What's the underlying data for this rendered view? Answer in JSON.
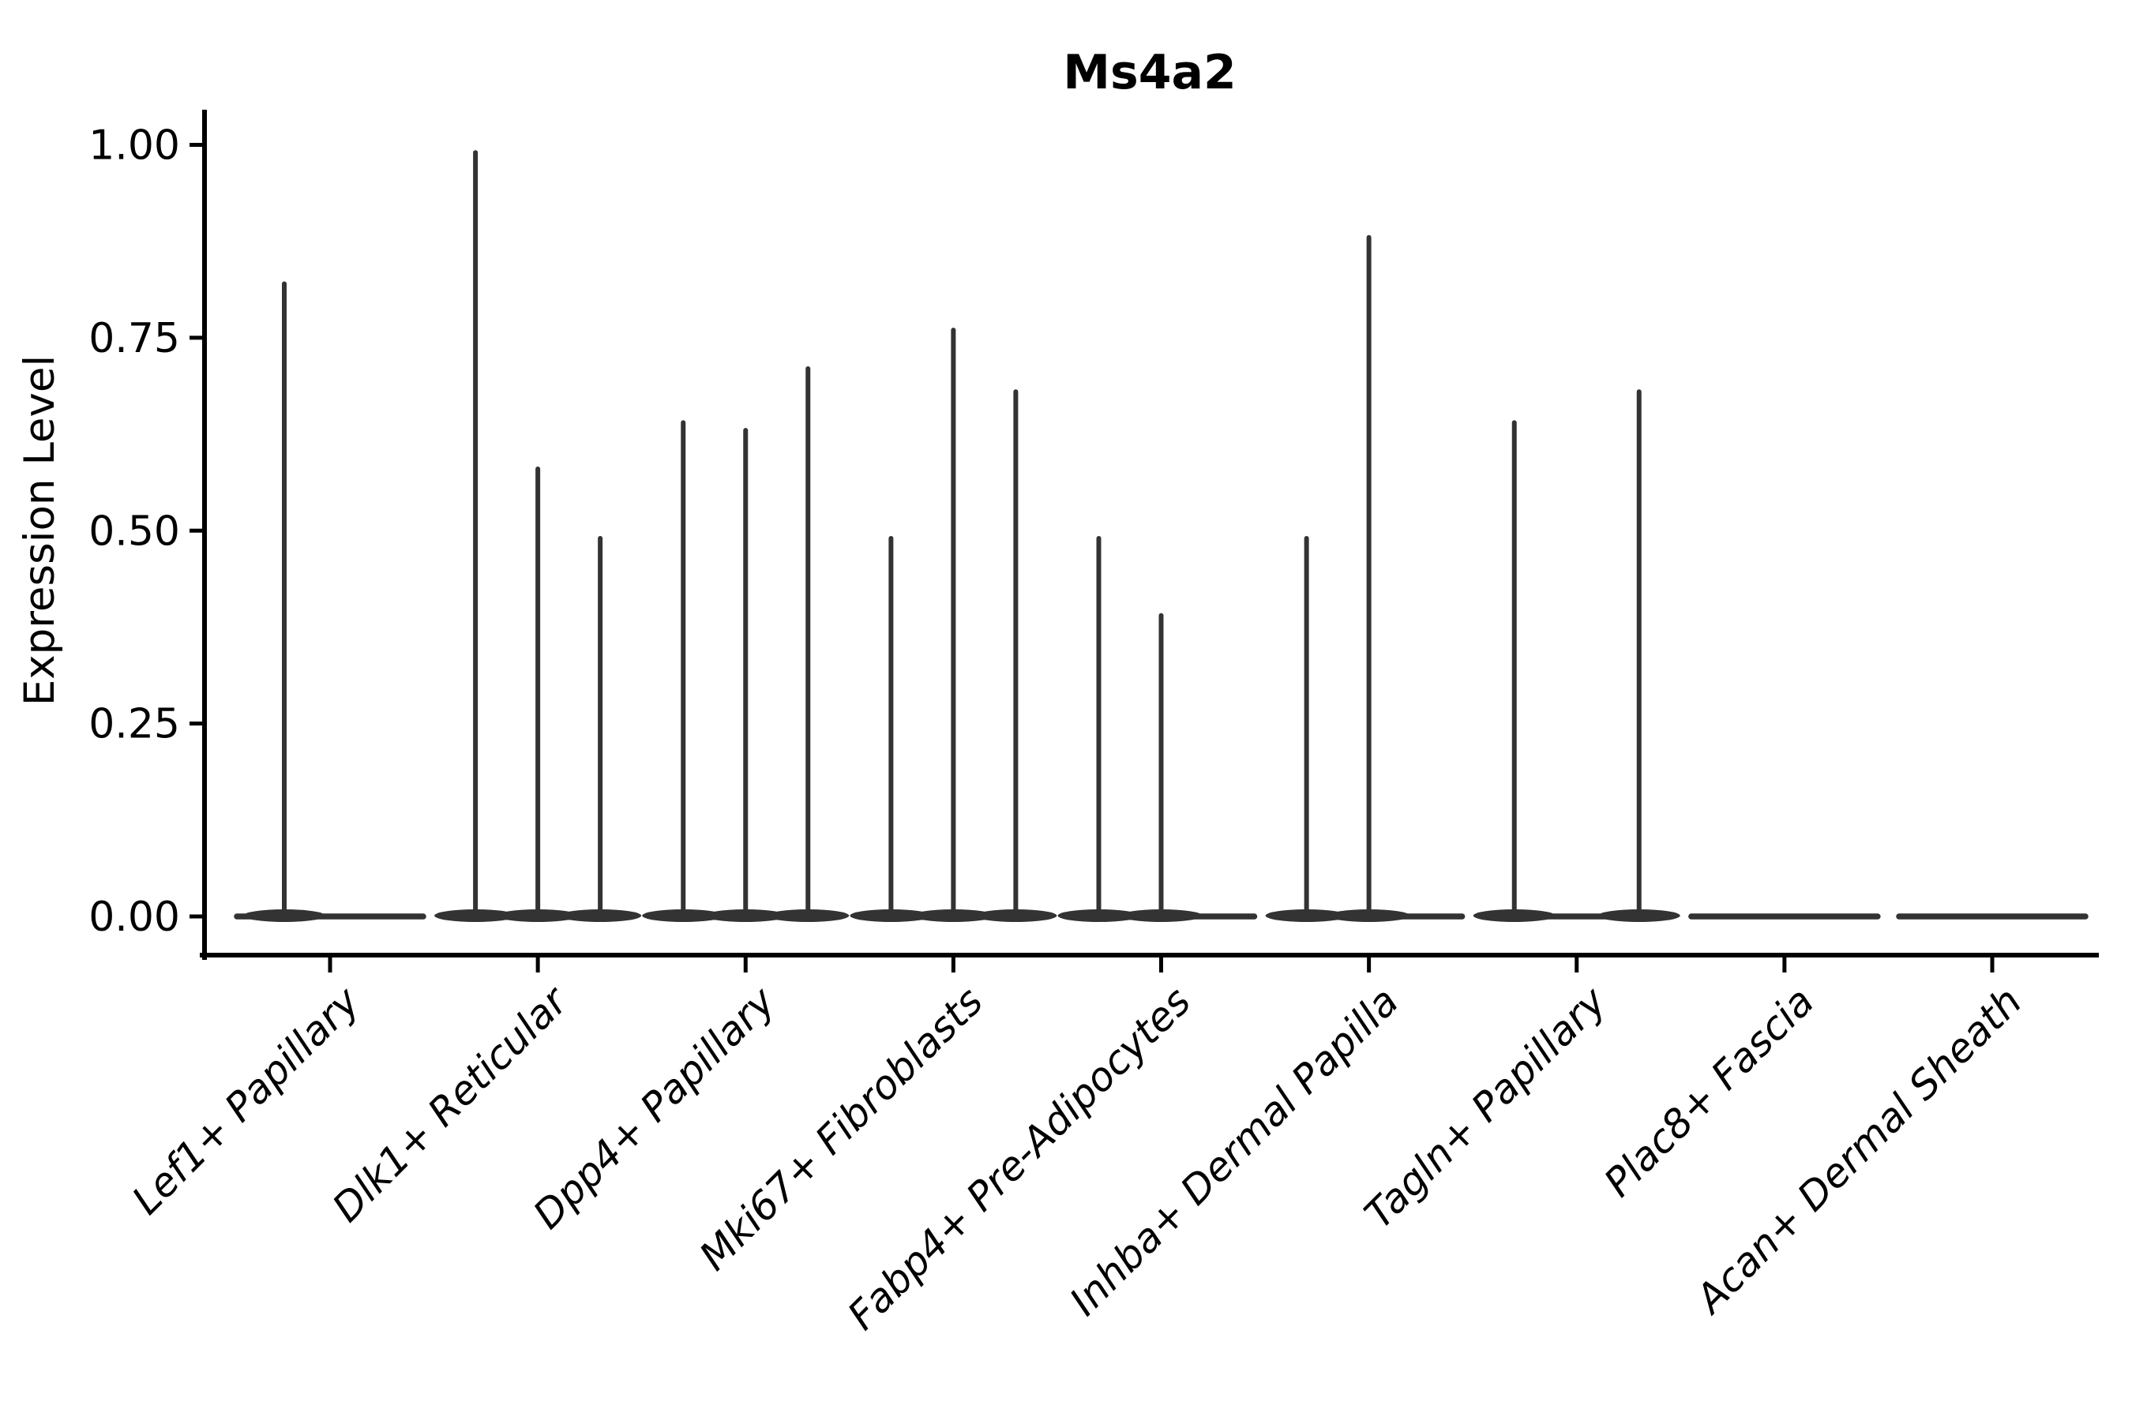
{
  "chart_data": {
    "type": "violin",
    "title": "Ms4a2",
    "xlabel": "",
    "ylabel": "Expression Level",
    "ylim": [
      0,
      1.0
    ],
    "grid": false,
    "legend": null,
    "style": "collapsed violins rendered as thin vertical density spikes over flat zero baselines",
    "yticks": [
      {
        "value": 0.0,
        "label": "0.00"
      },
      {
        "value": 0.25,
        "label": "0.25"
      },
      {
        "value": 0.5,
        "label": "0.50"
      },
      {
        "value": 0.75,
        "label": "0.75"
      },
      {
        "value": 1.0,
        "label": "1.00"
      }
    ],
    "categories": [
      "Lef1+ Papillary",
      "Dlk1+ Reticular",
      "Dpp4+ Papillary",
      "Mki67+ Fibroblasts",
      "Fabp4+ Pre-Adipocytes",
      "Inhba+ Dermal Papilla",
      "Tagln+ Papillary",
      "Plac8+ Fascia",
      "Acan+ Dermal Sheath"
    ],
    "groups": [
      {
        "label": "Lef1+ Papillary",
        "spikes": [
          {
            "dx": -58,
            "value": 0.82
          }
        ]
      },
      {
        "label": "Dlk1+ Reticular",
        "spikes": [
          {
            "dx": -79,
            "value": 0.99
          },
          {
            "dx": 0,
            "value": 0.58
          },
          {
            "dx": 79,
            "value": 0.49
          }
        ]
      },
      {
        "label": "Dpp4+ Papillary",
        "spikes": [
          {
            "dx": -79,
            "value": 0.64
          },
          {
            "dx": 0,
            "value": 0.63
          },
          {
            "dx": 79,
            "value": 0.71
          }
        ]
      },
      {
        "label": "Mki67+ Fibroblasts",
        "spikes": [
          {
            "dx": -79,
            "value": 0.49
          },
          {
            "dx": 0,
            "value": 0.76
          },
          {
            "dx": 79,
            "value": 0.68
          }
        ]
      },
      {
        "label": "Fabp4+ Pre-Adipocytes",
        "spikes": [
          {
            "dx": -79,
            "value": 0.49
          },
          {
            "dx": 0,
            "value": 0.39
          }
        ]
      },
      {
        "label": "Inhba+ Dermal Papilla",
        "spikes": [
          {
            "dx": -79,
            "value": 0.49
          },
          {
            "dx": 0,
            "value": 0.88
          }
        ]
      },
      {
        "label": "Tagln+ Papillary",
        "spikes": [
          {
            "dx": -79,
            "value": 0.64
          },
          {
            "dx": 79,
            "value": 0.68
          }
        ]
      },
      {
        "label": "Plac8+ Fascia",
        "spikes": []
      },
      {
        "label": "Acan+ Dermal Sheath",
        "spikes": []
      }
    ],
    "colors": {
      "violin": "#333333",
      "axis": "#000000",
      "text": "#000000",
      "background": "#ffffff"
    }
  }
}
